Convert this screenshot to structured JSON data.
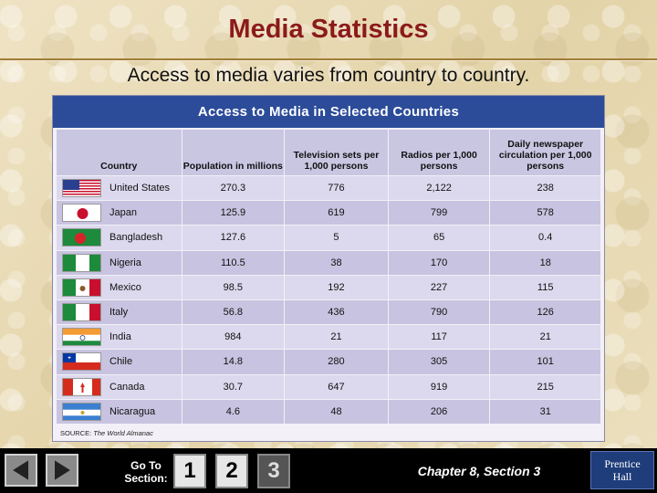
{
  "slide": {
    "title": "Media Statistics",
    "subtitle": "Access to media varies from country to country."
  },
  "table": {
    "banner": "Access to Media in Selected Countries",
    "headers": [
      "Country",
      "Population in millions",
      "Television sets per 1,000 persons",
      "Radios per 1,000 persons",
      "Daily newspaper circulation per 1,000 persons"
    ],
    "rows": [
      {
        "country": "United States",
        "flag": "us-flag-icon",
        "population": "270.3",
        "tv": "776",
        "radios": "2,122",
        "newspaper": "238"
      },
      {
        "country": "Japan",
        "flag": "japan-flag-icon",
        "population": "125.9",
        "tv": "619",
        "radios": "799",
        "newspaper": "578"
      },
      {
        "country": "Bangladesh",
        "flag": "bangladesh-flag-icon",
        "population": "127.6",
        "tv": "5",
        "radios": "65",
        "newspaper": "0.4"
      },
      {
        "country": "Nigeria",
        "flag": "nigeria-flag-icon",
        "population": "110.5",
        "tv": "38",
        "radios": "170",
        "newspaper": "18"
      },
      {
        "country": "Mexico",
        "flag": "mexico-flag-icon",
        "population": "98.5",
        "tv": "192",
        "radios": "227",
        "newspaper": "115"
      },
      {
        "country": "Italy",
        "flag": "italy-flag-icon",
        "population": "56.8",
        "tv": "436",
        "radios": "790",
        "newspaper": "126"
      },
      {
        "country": "India",
        "flag": "india-flag-icon",
        "population": "984",
        "tv": "21",
        "radios": "117",
        "newspaper": "21"
      },
      {
        "country": "Chile",
        "flag": "chile-flag-icon",
        "population": "14.8",
        "tv": "280",
        "radios": "305",
        "newspaper": "101"
      },
      {
        "country": "Canada",
        "flag": "canada-flag-icon",
        "population": "30.7",
        "tv": "647",
        "radios": "919",
        "newspaper": "215"
      },
      {
        "country": "Nicaragua",
        "flag": "nicaragua-flag-icon",
        "population": "4.6",
        "tv": "48",
        "radios": "206",
        "newspaper": "31"
      }
    ],
    "source_label": "SOURCE:",
    "source_name": "The World Almanac"
  },
  "navigation": {
    "prev_icon": "triangle-left-icon",
    "next_icon": "triangle-right-icon",
    "goto_label_line1": "Go To",
    "goto_label_line2": "Section:",
    "sections": [
      "1",
      "2",
      "3"
    ],
    "active_section": "3",
    "chapter_label": "Chapter 8, Section 3"
  },
  "logo": {
    "line1": "Prentice",
    "line2": "Hall"
  },
  "colors": {
    "title": "#8b1a1a",
    "banner": "#2c4c9a",
    "row_light": "#dcd9ee",
    "row_dark": "#c7c3e0",
    "bottom_bar": "#000000"
  }
}
